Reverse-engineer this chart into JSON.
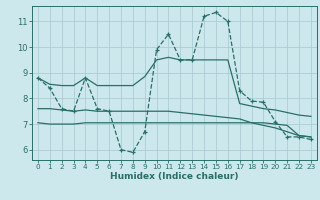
{
  "xlabel": "Humidex (Indice chaleur)",
  "bg_color": "#cce8ec",
  "grid_color": "#aacdd4",
  "line_color": "#2a6e68",
  "xlim": [
    -0.5,
    23.5
  ],
  "ylim": [
    5.6,
    11.6
  ],
  "yticks": [
    6,
    7,
    8,
    9,
    10,
    11
  ],
  "xticks": [
    0,
    1,
    2,
    3,
    4,
    5,
    6,
    7,
    8,
    9,
    10,
    11,
    12,
    13,
    14,
    15,
    16,
    17,
    18,
    19,
    20,
    21,
    22,
    23
  ],
  "series_dashed": [
    8.8,
    8.4,
    7.6,
    7.5,
    8.8,
    7.6,
    7.5,
    6.0,
    5.9,
    6.7,
    9.9,
    10.5,
    9.5,
    9.5,
    11.2,
    11.35,
    11.0,
    8.3,
    7.9,
    7.85,
    7.1,
    6.5,
    6.5,
    6.4
  ],
  "series_upper_solid": [
    8.8,
    8.55,
    8.5,
    8.5,
    8.8,
    8.5,
    8.5,
    8.5,
    8.5,
    8.85,
    9.5,
    9.6,
    9.5,
    9.5,
    9.5,
    9.5,
    9.5,
    7.8,
    7.7,
    7.6,
    7.55,
    7.45,
    7.35,
    7.3
  ],
  "series_mid_solid": [
    7.6,
    7.6,
    7.55,
    7.5,
    7.55,
    7.5,
    7.5,
    7.5,
    7.5,
    7.5,
    7.5,
    7.5,
    7.45,
    7.4,
    7.35,
    7.3,
    7.25,
    7.2,
    7.05,
    6.95,
    6.85,
    6.7,
    6.55,
    6.5
  ],
  "series_low_solid": [
    7.05,
    7.0,
    7.0,
    7.0,
    7.05,
    7.05,
    7.05,
    7.05,
    7.05,
    7.05,
    7.05,
    7.05,
    7.05,
    7.05,
    7.05,
    7.05,
    7.05,
    7.05,
    7.05,
    7.05,
    7.0,
    6.95,
    6.55,
    6.5
  ]
}
